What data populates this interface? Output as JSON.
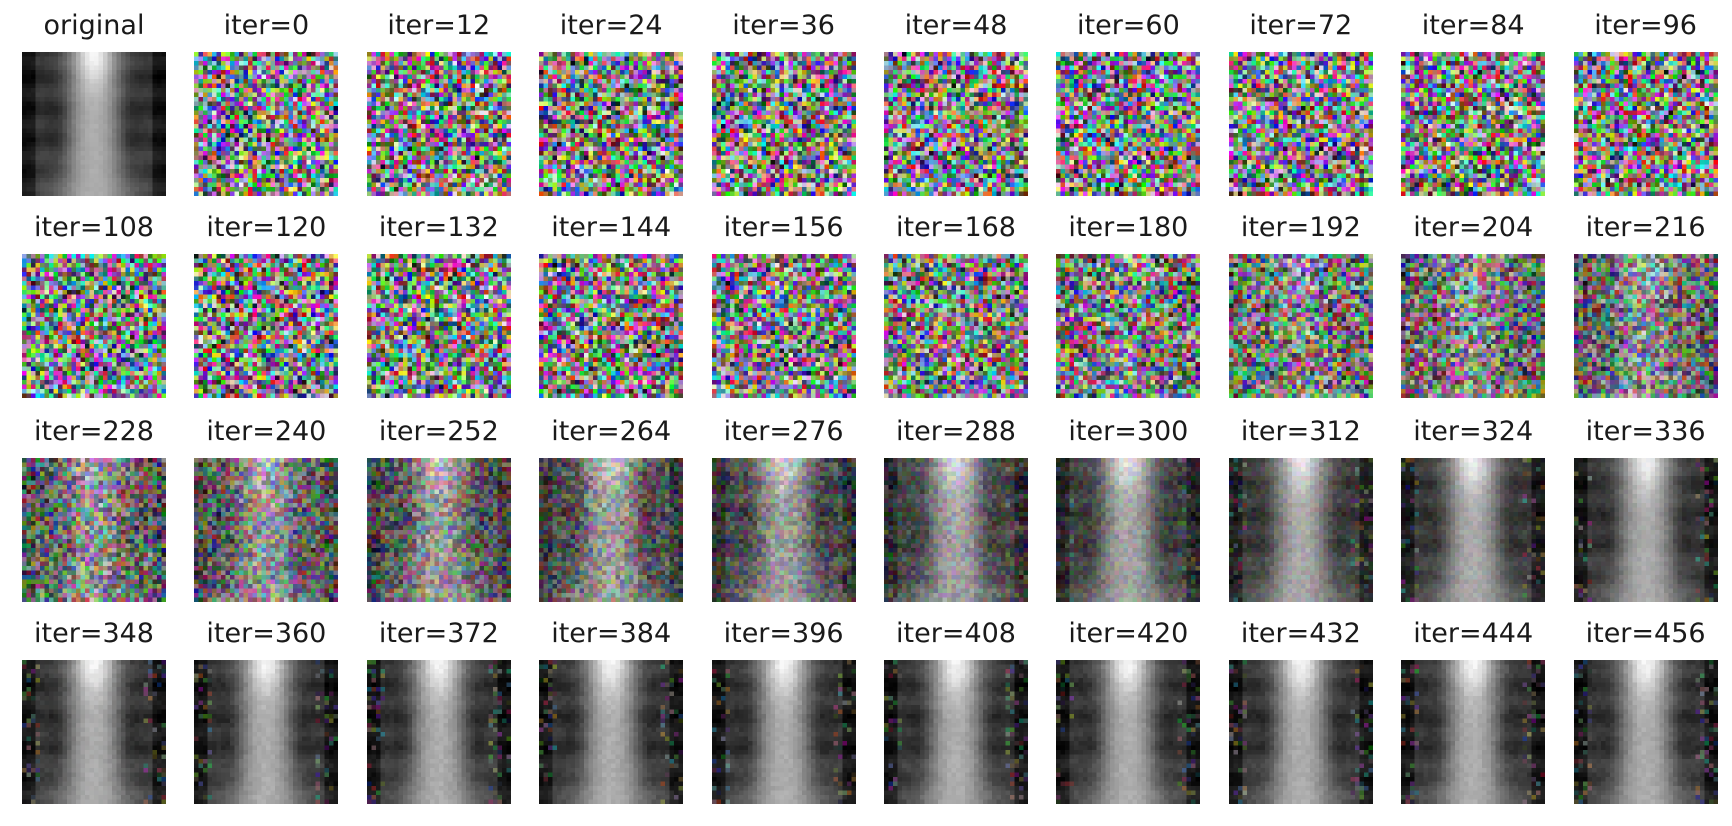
{
  "panels": {
    "original_label": "original",
    "label_prefix": "iter=",
    "iterations": [
      0,
      12,
      24,
      36,
      48,
      60,
      72,
      84,
      96,
      108,
      120,
      132,
      144,
      156,
      168,
      180,
      192,
      204,
      216,
      228,
      240,
      252,
      264,
      276,
      288,
      300,
      312,
      324,
      336,
      348,
      360,
      372,
      384,
      396,
      408,
      420,
      432,
      444,
      456
    ]
  },
  "images": {
    "original": "grayscale chest x-ray thumbnail",
    "iterations": "progressive denoising from colored noise to grayscale chest x-ray"
  }
}
